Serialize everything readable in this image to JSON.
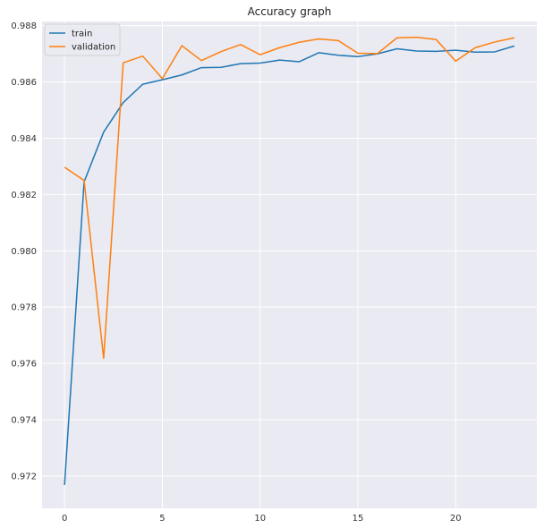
{
  "chart_data": {
    "type": "line",
    "title": "Accuracy graph",
    "xlabel": "",
    "ylabel": "",
    "xlim": [
      -1.15,
      24.15
    ],
    "ylim": [
      0.97085,
      0.98815
    ],
    "xticks": [
      0,
      5,
      10,
      15,
      20
    ],
    "xtick_labels": [
      "0",
      "5",
      "10",
      "15",
      "20"
    ],
    "yticks": [
      0.972,
      0.974,
      0.976,
      0.978,
      0.98,
      0.982,
      0.984,
      0.986,
      0.988
    ],
    "ytick_labels": [
      "0.972",
      "0.974",
      "0.976",
      "0.978",
      "0.980",
      "0.982",
      "0.984",
      "0.986",
      "0.988"
    ],
    "grid": true,
    "legend_position": "top-left",
    "x": [
      0,
      1,
      2,
      3,
      4,
      5,
      6,
      7,
      8,
      9,
      10,
      11,
      12,
      13,
      14,
      15,
      16,
      17,
      18,
      19,
      20,
      21,
      22,
      23
    ],
    "series": [
      {
        "name": "train",
        "color": "#1f77b4",
        "values": [
          0.97168,
          0.98245,
          0.98422,
          0.98527,
          0.98592,
          0.98608,
          0.98625,
          0.98651,
          0.98652,
          0.98665,
          0.98667,
          0.98678,
          0.98672,
          0.98704,
          0.98695,
          0.9869,
          0.987,
          0.98718,
          0.9871,
          0.98709,
          0.98713,
          0.98706,
          0.98707,
          0.98728
        ]
      },
      {
        "name": "validation",
        "color": "#ff7f0e",
        "values": [
          0.98297,
          0.9825,
          0.97618,
          0.98668,
          0.98692,
          0.98612,
          0.98729,
          0.98676,
          0.98708,
          0.98733,
          0.98697,
          0.98722,
          0.98741,
          0.98753,
          0.98747,
          0.98702,
          0.98701,
          0.98757,
          0.98759,
          0.98751,
          0.98674,
          0.98722,
          0.98742,
          0.98757
        ]
      }
    ]
  }
}
